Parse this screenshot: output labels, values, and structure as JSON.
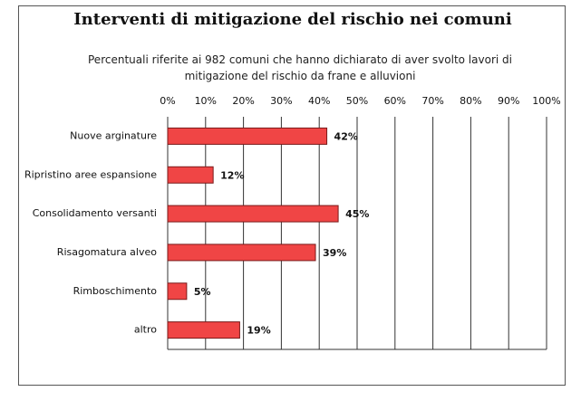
{
  "chart_data": {
    "type": "bar",
    "orientation": "horizontal",
    "title": "Interventi di mitigazione del rischio nei comuni",
    "subtitle": "Percentuali riferite ai 982 comuni che hanno dichiarato di aver svolto lavori di mitigazione del rischio da frane e alluvioni",
    "categories": [
      "Nuove arginature",
      "Ripristino aree espansione",
      "Consolidamento versanti",
      "Risagomatura alveo",
      "Rimboschimento",
      "altro"
    ],
    "values": [
      42,
      12,
      45,
      39,
      5,
      19
    ],
    "value_labels": [
      "42%",
      "12%",
      "45%",
      "39%",
      "5%",
      "19%"
    ],
    "color": "#f04545",
    "xlim": [
      0,
      100
    ],
    "xticks": [
      {
        "value": 0,
        "label": "0%"
      },
      {
        "value": 10,
        "label": "10%"
      },
      {
        "value": 20,
        "label": "20%"
      },
      {
        "value": 30,
        "label": "30%"
      },
      {
        "value": 40,
        "label": "40%"
      },
      {
        "value": 50,
        "label": "50%"
      },
      {
        "value": 60,
        "label": "60%"
      },
      {
        "value": 70,
        "label": "70%"
      },
      {
        "value": 80,
        "label": "80%"
      },
      {
        "value": 90,
        "label": "90%"
      },
      {
        "value": 100,
        "label": "100%"
      }
    ],
    "grid": true
  }
}
